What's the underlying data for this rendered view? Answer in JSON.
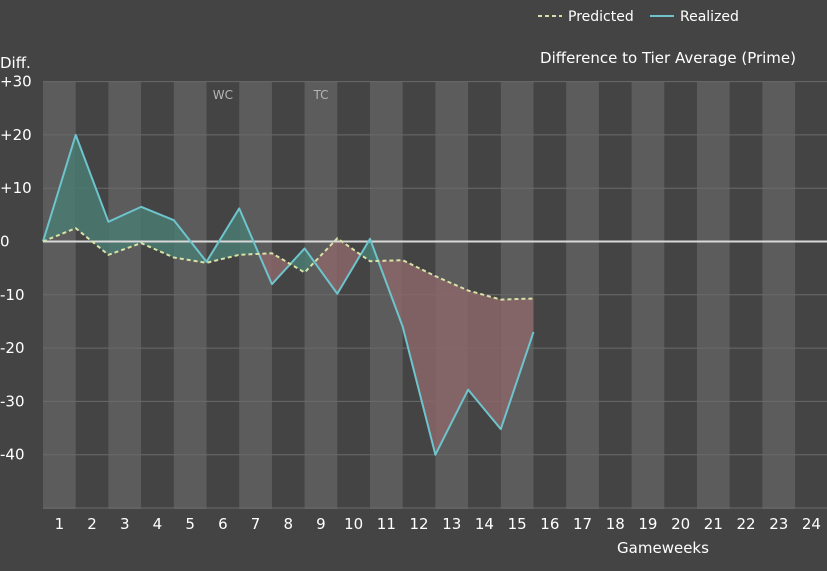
{
  "chart_data": {
    "type": "line",
    "title": "Difference to Tier Average (Prime)",
    "xlabel": "Gameweeks",
    "ylabel": "Diff.",
    "x_ticks": [
      1,
      2,
      3,
      4,
      5,
      6,
      7,
      8,
      9,
      10,
      11,
      12,
      13,
      14,
      15,
      16,
      17,
      18,
      19,
      20,
      21,
      22,
      23,
      24
    ],
    "y_ticks": [
      "+30",
      "+20",
      "+10",
      "0",
      "-10",
      "-20",
      "-30",
      "-40"
    ],
    "ylim": [
      -50,
      30
    ],
    "grid": true,
    "legend_position": "top-right",
    "annotations": [
      {
        "text": "WC",
        "x": 6
      },
      {
        "text": "TC",
        "x": 9
      }
    ],
    "x": [
      0,
      1,
      2,
      3,
      4,
      5,
      6,
      7,
      8,
      9,
      10,
      11,
      12,
      13,
      14,
      15
    ],
    "series": [
      {
        "name": "Predicted",
        "style": "dashed",
        "color": "#d8e2a6",
        "values": [
          0,
          2.5,
          -2.5,
          -0.3,
          -3,
          -4,
          -2.5,
          -2.2,
          -5.8,
          0.6,
          -3.7,
          -3.5,
          -6.5,
          -9.2,
          -10.9,
          -10.7
        ]
      },
      {
        "name": "Realized",
        "style": "solid",
        "color": "#6ec4cc",
        "values": [
          0,
          20,
          3.7,
          6.5,
          4,
          -3.8,
          6.2,
          -8,
          -1.3,
          -9.8,
          0.5,
          -16,
          -40,
          -27.8,
          -35.2,
          -17
        ]
      }
    ],
    "colors": {
      "background": "#444444",
      "band": "#5c5c5c",
      "gridline": "#6a6a6a",
      "zero_line": "#d8d8d8",
      "positive_fill": "#4a7a72",
      "negative_fill": "#8a6668"
    }
  }
}
